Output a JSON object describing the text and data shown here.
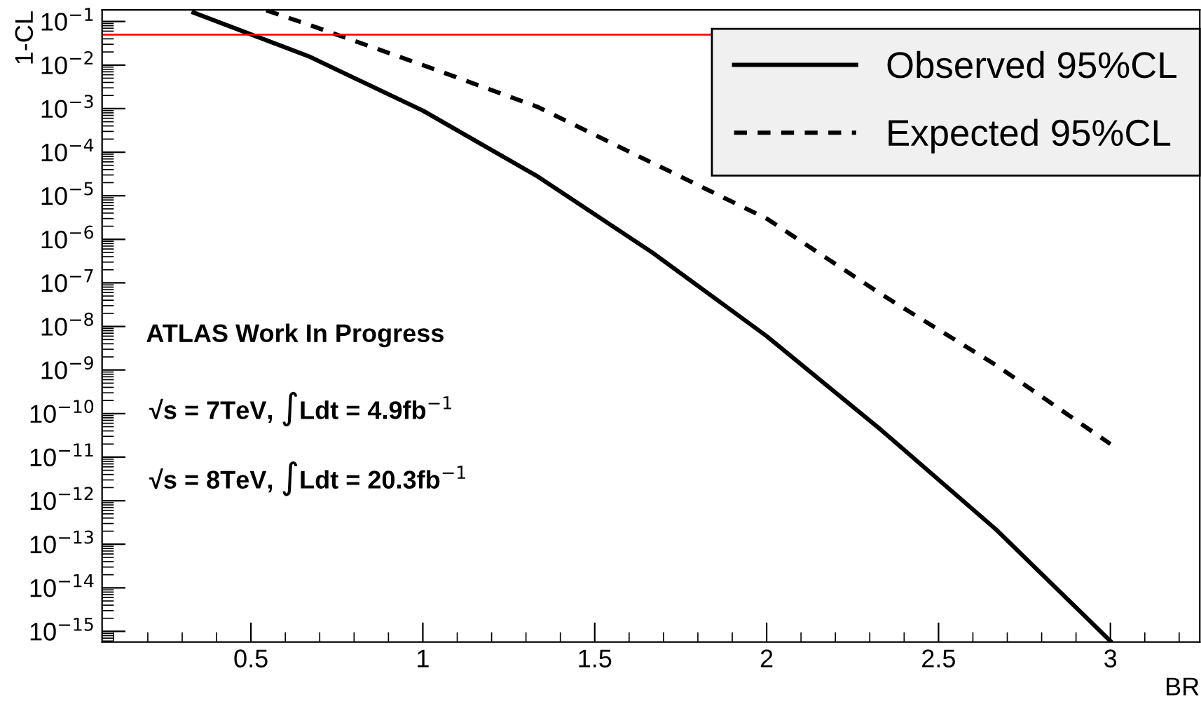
{
  "chart_data": {
    "type": "line",
    "xlabel": "BR",
    "ylabel": "1-CL",
    "log": "y",
    "xlim": [
      0.067,
      3.26
    ],
    "xticks": [
      0.5,
      1,
      1.5,
      2,
      2.5,
      3
    ],
    "ylim": [
      5.7e-16,
      0.185
    ],
    "yticks": [
      {
        "value": 0.1,
        "label": "10$^{−1}$"
      },
      {
        "value": 0.01,
        "label": "10$^{−2}$"
      },
      {
        "value": 0.001,
        "label": "10$^{−3}$"
      },
      {
        "value": 0.0001,
        "label": "10$^{−4}$"
      },
      {
        "value": 1e-05,
        "label": "10$^{−5}$"
      },
      {
        "value": 1e-06,
        "label": "10$^{−6}$"
      },
      {
        "value": 1e-07,
        "label": "10$^{−7}$"
      },
      {
        "value": 1e-08,
        "label": "10$^{−8}$"
      },
      {
        "value": 1e-09,
        "label": "10$^{−9}$"
      },
      {
        "value": 1e-10,
        "label": "10$^{−10}$"
      },
      {
        "value": 1e-11,
        "label": "10$^{−11}$"
      },
      {
        "value": 1e-12,
        "label": "10$^{−12}$"
      },
      {
        "value": 1e-13,
        "label": "10$^{−13}$"
      },
      {
        "value": 1e-14,
        "label": "10$^{−14}$"
      },
      {
        "value": 1e-15,
        "label": "10$^{−15}$"
      }
    ],
    "series": [
      {
        "name": "Observed 95%CL",
        "color": "#000000",
        "line_style": "solid",
        "x": [
          0.333,
          0.667,
          1.0,
          1.333,
          1.667,
          2.0,
          2.333,
          2.667,
          3.0
        ],
        "values": [
          0.16,
          0.016,
          0.0009,
          2.8e-05,
          5e-07,
          6e-09,
          4.2e-11,
          2.2e-13,
          6e-16
        ]
      },
      {
        "name": "Expected 95%CL",
        "color": "#000000",
        "line_style": "dashed",
        "x": [
          0.545,
          0.667,
          1.0,
          1.333,
          1.667,
          2.0,
          2.333,
          2.667,
          3.0
        ],
        "values": [
          0.18,
          0.085,
          0.01,
          0.0011,
          5.7e-05,
          3e-06,
          5.5e-08,
          1.3e-09,
          2e-11
        ]
      }
    ],
    "ref_lines": [
      {
        "axis": "y",
        "value": 0.05,
        "color": "#ff0000",
        "line_style": "solid"
      }
    ],
    "legend": "top right",
    "grid": false,
    "annotations": [
      "ATLAS Work In Progress",
      "√s = 7TeV, ∫Ldt = 4.9fb$^{−1}$",
      "√s = 8TeV, ∫Ldt = 20.3fb$^{−1}$"
    ]
  }
}
